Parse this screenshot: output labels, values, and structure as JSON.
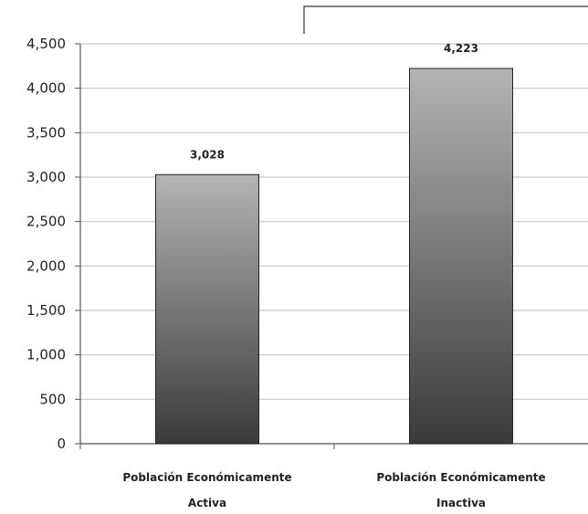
{
  "chart_data": {
    "type": "bar",
    "title": "",
    "xlabel": "",
    "ylabel": "",
    "categories": [
      [
        "Población Económicamente",
        "Activa"
      ],
      [
        "Población Económicamente",
        "Inactiva"
      ]
    ],
    "values": [
      3028,
      4223
    ],
    "value_labels": [
      "3,028",
      "4,223"
    ],
    "ylim": [
      0,
      4500
    ],
    "yticks": [
      0,
      500,
      1000,
      1500,
      2000,
      2500,
      3000,
      3500,
      4000,
      4500
    ],
    "ytick_labels": [
      "0",
      "500",
      "1,000",
      "1,500",
      "2,000",
      "2,500",
      "3,000",
      "3,500",
      "4,000",
      "4,500"
    ],
    "grid": true,
    "legend": false,
    "colors": {
      "bar_top": "#b4b4b4",
      "bar_bottom": "#3a3a3a",
      "bar_outline": "#222222",
      "gridline": "#c8c8c8",
      "axis": "#555555",
      "frame": "#333333"
    }
  }
}
